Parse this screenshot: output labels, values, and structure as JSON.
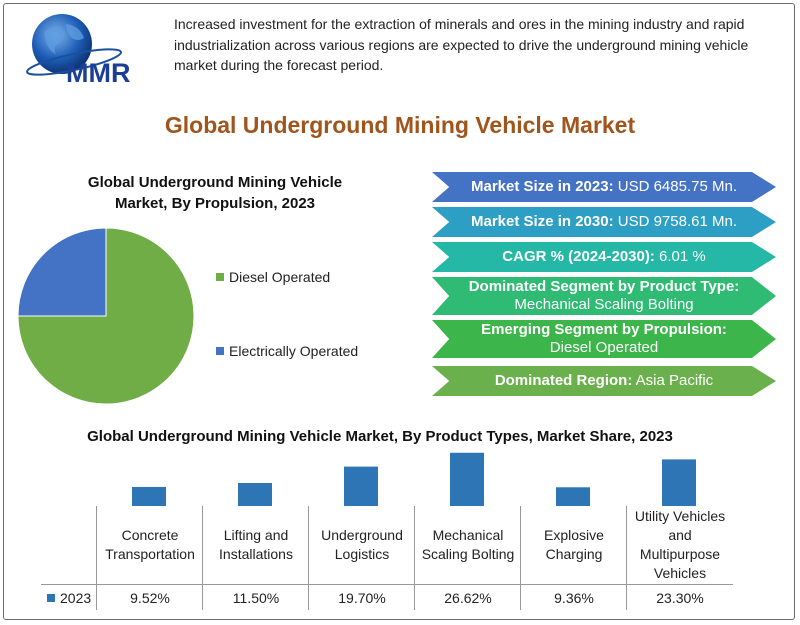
{
  "logo": {
    "text": "MMR"
  },
  "intro_text": "Increased investment for the extraction of minerals and ores in the mining industry and rapid industrialization across various regions are expected to drive the underground mining vehicle market during the forecast period.",
  "main_title": "Global Underground Mining Vehicle Market",
  "highlights": [
    {
      "label": "Market Size in 2023:",
      "value": "USD 6485.75 Mn.",
      "color": "#4472c4"
    },
    {
      "label": "Market Size in 2030:",
      "value": "USD 9758.61 Mn.",
      "color": "#2e9fc4"
    },
    {
      "label": "CAGR % (2024-2030):",
      "value": "6.01 %",
      "color": "#26b8a6"
    },
    {
      "label": "Dominated Segment by Product Type:",
      "value": "Mechanical Scaling Bolting",
      "color": "#2fbb73"
    },
    {
      "label": "Emerging Segment by Propulsion:",
      "value": "Diesel Operated",
      "color": "#3cb54a"
    },
    {
      "label": "Dominated Region:",
      "value": "Asia Pacific",
      "color": "#6ab04c"
    }
  ],
  "chart_data": [
    {
      "type": "pie",
      "title": "Global Underground Mining Vehicle Market, By Propulsion, 2023",
      "categories": [
        "Diesel Operated",
        "Electrically Operated"
      ],
      "values": [
        75,
        25
      ],
      "colors": [
        "#70ad47",
        "#4472c4"
      ],
      "legend": "right"
    },
    {
      "type": "bar",
      "title": "Global Underground Mining Vehicle Market, By Product Types, Market Share,  2023",
      "categories": [
        "Concrete Transportation",
        "Lifting and Installations",
        "Underground Logistics",
        "Mechanical Scaling Bolting",
        "Explosive Charging",
        "Utility Vehicles and Multipurpose Vehicles"
      ],
      "series": [
        {
          "name": "2023",
          "values": [
            9.52,
            11.5,
            19.7,
            26.62,
            9.36,
            23.3
          ],
          "labels": [
            "9.52%",
            "11.50%",
            "19.70%",
            "26.62%",
            "9.36%",
            "23.30%"
          ]
        }
      ],
      "color": "#2e75b6",
      "legend": "data-table"
    }
  ]
}
